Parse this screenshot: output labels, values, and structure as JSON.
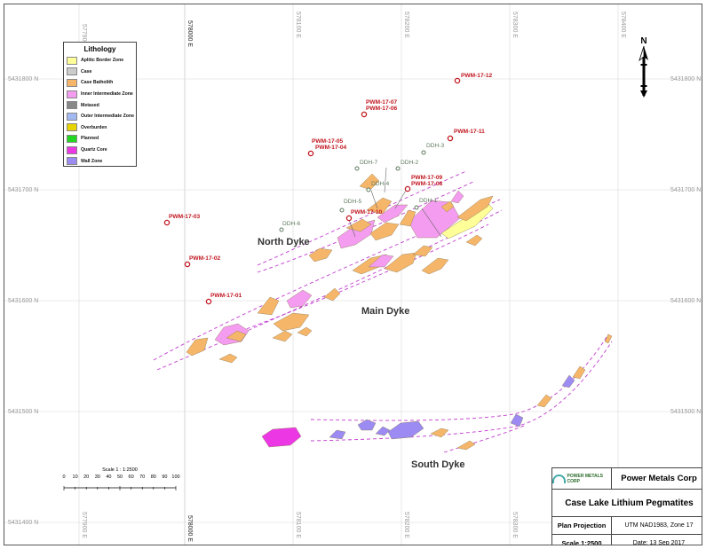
{
  "map": {
    "x_grid": [
      {
        "label": "577900 E",
        "emph": false
      },
      {
        "label": "578000 E",
        "emph": true
      },
      {
        "label": "578100 E",
        "emph": false
      },
      {
        "label": "578200 E",
        "emph": false
      },
      {
        "label": "578300 E",
        "emph": false
      },
      {
        "label": "578400 E",
        "emph": false
      }
    ],
    "y_grid": [
      {
        "label": "5431800 N"
      },
      {
        "label": "5431700 N"
      },
      {
        "label": "5431600 N"
      },
      {
        "label": "5431500 N"
      },
      {
        "label": "5431400 N"
      }
    ],
    "drill_holes": [
      {
        "label": "PWM-17-12"
      },
      {
        "label": "PWM-17-07"
      },
      {
        "label": "PWM-17-06"
      },
      {
        "label": "PWM-17-11"
      },
      {
        "label": "PWM-17-05"
      },
      {
        "label": "PWM-17-04"
      },
      {
        "label": "PWM-17-09"
      },
      {
        "label": "PWM-17-08"
      },
      {
        "label": "PWM-17-10"
      },
      {
        "label": "PWM-17-03"
      },
      {
        "label": "PWM-17-02"
      },
      {
        "label": "PWM-17-01"
      }
    ],
    "ddh": [
      {
        "label": "DDH-3"
      },
      {
        "label": "DDH-7"
      },
      {
        "label": "DDH-2"
      },
      {
        "label": "DDH-4"
      },
      {
        "label": "DDH-5"
      },
      {
        "label": "DDH-1"
      },
      {
        "label": "DDH-6"
      }
    ],
    "dykes": {
      "north": "North Dyke",
      "main": "Main Dyke",
      "south": "South Dyke"
    },
    "colors": {
      "aplitic": "#ffff99",
      "case": "#cccccc",
      "batholith": "#f5b66a",
      "inner": "#f49cf0",
      "metased": "#888888",
      "outer": "#a3b9f4",
      "overburden": "#e8d400",
      "planned": "#22d622",
      "quartz": "#ec38e4",
      "wall": "#9b8bf2",
      "dyke_line": "#c23ccf",
      "hole": "#c0161f"
    }
  },
  "legend": {
    "title": "Lithology",
    "items": [
      {
        "label": "Aplitic Border Zone",
        "color": "#ffff99"
      },
      {
        "label": "Case",
        "color": "#cccccc"
      },
      {
        "label": "Case Batholith",
        "color": "#f5b66a"
      },
      {
        "label": "Inner Intermediate Zone",
        "color": "#f49cf0"
      },
      {
        "label": "Metased",
        "color": "#888888"
      },
      {
        "label": "Outer Intermediate Zone",
        "color": "#a3b9f4"
      },
      {
        "label": "Overburden",
        "color": "#e8d400"
      },
      {
        "label": "Planned",
        "color": "#22d622"
      },
      {
        "label": "Quartz Core",
        "color": "#ec38e4"
      },
      {
        "label": "Wall Zone",
        "color": "#9b8bf2"
      }
    ]
  },
  "north_arrow": {
    "label": "N"
  },
  "scale": {
    "title": "Scale 1 : 1:2500",
    "ticks": [
      "0",
      "10",
      "20",
      "30",
      "40",
      "50",
      "60",
      "70",
      "80",
      "90",
      "100"
    ]
  },
  "title_block": {
    "logo_text": "POWER METALS CORP",
    "company": "Power Metals Corp",
    "project": "Case Lake Lithium Pegmatites",
    "projection_label": "Plan Projection",
    "projection_value": "UTM NAD1983, Zone 17",
    "scale_label": "Scale 1:2500",
    "date": "Date: 13 Sep 2017"
  }
}
